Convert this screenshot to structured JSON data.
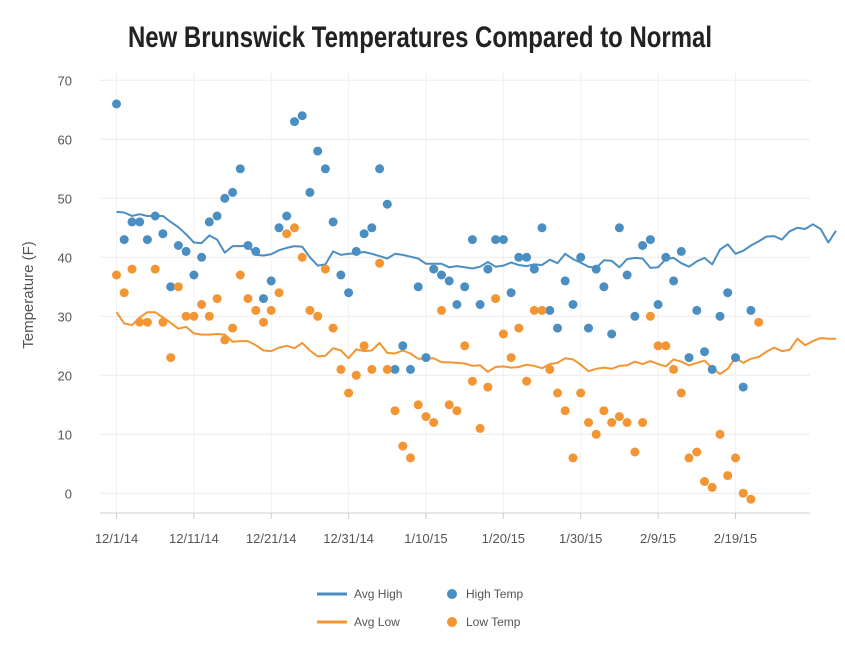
{
  "chart_data": {
    "type": "line",
    "title": "New Brunswick Temperatures Compared to Normal",
    "xlabel": "",
    "ylabel": "Temperature (F)",
    "ylim": [
      -4,
      70
    ],
    "yticks": [
      0,
      10,
      20,
      30,
      40,
      50,
      60,
      70
    ],
    "x_start_date": "12/1/14",
    "xticks": [
      "12/1/14",
      "12/11/14",
      "12/21/14",
      "12/31/14",
      "1/10/15",
      "1/20/15",
      "1/30/15",
      "2/9/15",
      "2/19/15"
    ],
    "grid": true,
    "legend_position": "bottom",
    "colors": {
      "high": "#4a8ec2",
      "low": "#f39533"
    },
    "series": [
      {
        "name": "Avg High",
        "kind": "line",
        "color": "#4a8ec2",
        "values": [
          47.7,
          47.6,
          47,
          47.3,
          47,
          47,
          47,
          46,
          45.1,
          43.9,
          42.5,
          42.4,
          43.7,
          43,
          40.8,
          41.9,
          41.9,
          42,
          40.4,
          40.3,
          40.5,
          41.2,
          41.6,
          41.9,
          41.8,
          40,
          38.6,
          38.8,
          41,
          40.4,
          40.6,
          40.7,
          40.9,
          40.6,
          40.2,
          39.8,
          40.6,
          40.4,
          40.1,
          39.8,
          38.9,
          38.9,
          38.9,
          38.3,
          38.5,
          38.3,
          38.1,
          38.4,
          39.2,
          38.4,
          38.6,
          39.1,
          38.7,
          38.5,
          38.8,
          38.7,
          39.6,
          39,
          40.6,
          39.7,
          39.1,
          38.4,
          38.2,
          39.5,
          39.4,
          38.3,
          39.7,
          39.9,
          39.8,
          38.2,
          38.3,
          39.7,
          39.9,
          39,
          38.4,
          39.3,
          39.9,
          38.8,
          41.3,
          42.2,
          40.6,
          41.1,
          42,
          42.7,
          43.5,
          43.6,
          43,
          44.4,
          45,
          44.8,
          45.6,
          44.8,
          42.5,
          44.5
        ]
      },
      {
        "name": "Avg Low",
        "kind": "line",
        "color": "#f39533",
        "values": [
          30.7,
          28.8,
          28.5,
          29.8,
          30.7,
          30.7,
          29.8,
          28.9,
          27.9,
          28.2,
          27.1,
          26.9,
          26.9,
          27,
          26.9,
          25.7,
          25.8,
          25.8,
          25.1,
          24.2,
          24.1,
          24.7,
          25,
          24.6,
          25.5,
          24.2,
          23.2,
          23.3,
          24.6,
          24.2,
          22.9,
          24.4,
          24.1,
          24.2,
          25.5,
          23.8,
          23.7,
          24.2,
          23.7,
          22.8,
          22.8,
          22.9,
          22.2,
          22.2,
          22.1,
          22,
          21.6,
          21.7,
          20.6,
          21.4,
          21.5,
          21.3,
          21.4,
          21.8,
          21.6,
          21.2,
          21.9,
          22.1,
          22.9,
          22.7,
          21.8,
          20.7,
          21.1,
          21.3,
          21.1,
          21.6,
          21.7,
          22.3,
          21.9,
          22.4,
          21.9,
          21.5,
          22.7,
          22.3,
          21.7,
          22.1,
          22.5,
          21.2,
          20.2,
          21.1,
          23,
          22.1,
          22.8,
          23.1,
          24,
          24.7,
          24.1,
          24.3,
          26.2,
          25.1,
          25.8,
          26.3,
          26.2,
          26.2
        ]
      },
      {
        "name": "High Temp",
        "kind": "scatter",
        "color": "#4a8ec2",
        "points": [
          [
            0,
            66
          ],
          [
            1,
            43
          ],
          [
            2,
            46
          ],
          [
            3,
            46
          ],
          [
            4,
            43
          ],
          [
            5,
            47
          ],
          [
            6,
            44
          ],
          [
            7,
            35
          ],
          [
            8,
            42
          ],
          [
            9,
            41
          ],
          [
            10,
            37
          ],
          [
            11,
            40
          ],
          [
            12,
            46
          ],
          [
            13,
            47
          ],
          [
            14,
            50
          ],
          [
            15,
            51
          ],
          [
            16,
            55
          ],
          [
            17,
            42
          ],
          [
            18,
            41
          ],
          [
            19,
            33
          ],
          [
            20,
            36
          ],
          [
            21,
            45
          ],
          [
            22,
            47
          ],
          [
            23,
            63
          ],
          [
            24,
            64
          ],
          [
            25,
            51
          ],
          [
            26,
            58
          ],
          [
            27,
            55
          ],
          [
            28,
            46
          ],
          [
            29,
            37
          ],
          [
            30,
            34
          ],
          [
            31,
            41
          ],
          [
            32,
            44
          ],
          [
            33,
            45
          ],
          [
            34,
            55
          ],
          [
            35,
            49
          ],
          [
            36,
            21
          ],
          [
            37,
            25
          ],
          [
            38,
            21
          ],
          [
            39,
            35
          ],
          [
            40,
            23
          ],
          [
            41,
            38
          ],
          [
            42,
            37
          ],
          [
            43,
            36
          ],
          [
            44,
            32
          ],
          [
            45,
            35
          ],
          [
            46,
            43
          ],
          [
            47,
            32
          ],
          [
            48,
            38
          ],
          [
            49,
            43
          ],
          [
            50,
            43
          ],
          [
            51,
            34
          ],
          [
            52,
            40
          ],
          [
            53,
            40
          ],
          [
            54,
            38
          ],
          [
            55,
            45
          ],
          [
            56,
            31
          ],
          [
            57,
            28
          ],
          [
            58,
            36
          ],
          [
            59,
            32
          ],
          [
            60,
            40
          ],
          [
            61,
            28
          ],
          [
            62,
            38
          ],
          [
            63,
            35
          ],
          [
            64,
            27
          ],
          [
            65,
            45
          ],
          [
            66,
            37
          ],
          [
            67,
            30
          ],
          [
            68,
            42
          ],
          [
            69,
            43
          ],
          [
            70,
            32
          ],
          [
            71,
            40
          ],
          [
            72,
            36
          ],
          [
            73,
            41
          ],
          [
            74,
            23
          ],
          [
            75,
            31
          ],
          [
            76,
            24
          ],
          [
            77,
            21
          ],
          [
            78,
            30
          ],
          [
            79,
            34
          ],
          [
            80,
            23
          ],
          [
            81,
            18
          ],
          [
            82,
            31
          ]
        ]
      },
      {
        "name": "Low Temp",
        "kind": "scatter",
        "color": "#f39533",
        "points": [
          [
            0,
            37
          ],
          [
            1,
            34
          ],
          [
            2,
            38
          ],
          [
            3,
            29
          ],
          [
            4,
            29
          ],
          [
            5,
            38
          ],
          [
            6,
            29
          ],
          [
            7,
            23
          ],
          [
            8,
            35
          ],
          [
            9,
            30
          ],
          [
            10,
            30
          ],
          [
            11,
            32
          ],
          [
            12,
            30
          ],
          [
            13,
            33
          ],
          [
            14,
            26
          ],
          [
            15,
            28
          ],
          [
            16,
            37
          ],
          [
            17,
            33
          ],
          [
            18,
            31
          ],
          [
            19,
            29
          ],
          [
            20,
            31
          ],
          [
            21,
            34
          ],
          [
            22,
            44
          ],
          [
            23,
            45
          ],
          [
            24,
            40
          ],
          [
            25,
            31
          ],
          [
            26,
            30
          ],
          [
            27,
            38
          ],
          [
            28,
            28
          ],
          [
            29,
            21
          ],
          [
            30,
            17
          ],
          [
            31,
            20
          ],
          [
            32,
            25
          ],
          [
            33,
            21
          ],
          [
            34,
            39
          ],
          [
            35,
            21
          ],
          [
            36,
            14
          ],
          [
            37,
            8
          ],
          [
            38,
            6
          ],
          [
            39,
            15
          ],
          [
            40,
            13
          ],
          [
            41,
            12
          ],
          [
            42,
            31
          ],
          [
            43,
            15
          ],
          [
            44,
            14
          ],
          [
            45,
            25
          ],
          [
            46,
            19
          ],
          [
            47,
            11
          ],
          [
            48,
            18
          ],
          [
            49,
            33
          ],
          [
            50,
            27
          ],
          [
            51,
            23
          ],
          [
            52,
            28
          ],
          [
            53,
            19
          ],
          [
            54,
            31
          ],
          [
            55,
            31
          ],
          [
            56,
            21
          ],
          [
            57,
            17
          ],
          [
            58,
            14
          ],
          [
            59,
            6
          ],
          [
            60,
            17
          ],
          [
            61,
            12
          ],
          [
            62,
            10
          ],
          [
            63,
            14
          ],
          [
            64,
            12
          ],
          [
            65,
            13
          ],
          [
            66,
            12
          ],
          [
            67,
            7
          ],
          [
            68,
            12
          ],
          [
            69,
            30
          ],
          [
            70,
            25
          ],
          [
            71,
            25
          ],
          [
            72,
            21
          ],
          [
            73,
            17
          ],
          [
            74,
            6
          ],
          [
            75,
            7
          ],
          [
            76,
            2
          ],
          [
            77,
            1
          ],
          [
            78,
            10
          ],
          [
            79,
            3
          ],
          [
            80,
            6
          ],
          [
            81,
            0
          ],
          [
            82,
            -1
          ],
          [
            83,
            29
          ]
        ]
      }
    ]
  }
}
